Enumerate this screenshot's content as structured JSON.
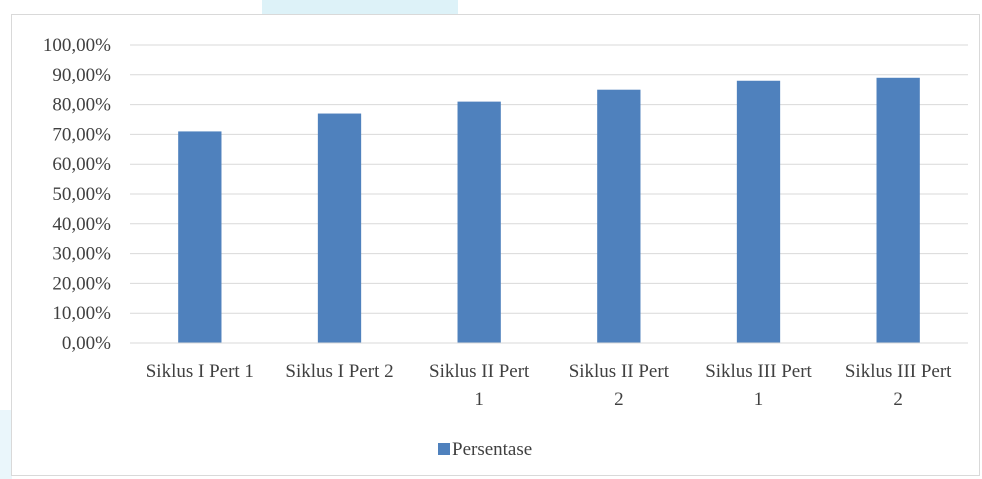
{
  "chart_data": {
    "type": "bar",
    "title": "",
    "xlabel": "",
    "ylabel": "",
    "categories": [
      [
        "Siklus I Pert 1"
      ],
      [
        "Siklus I Pert 2"
      ],
      [
        "Siklus II Pert",
        "1"
      ],
      [
        "Siklus II Pert",
        "2"
      ],
      [
        "Siklus III Pert",
        "1"
      ],
      [
        "Siklus III Pert",
        "2"
      ]
    ],
    "series": [
      {
        "name": "Persentase",
        "color": "#4f81bd",
        "values": [
          71.0,
          77.0,
          81.0,
          85.0,
          88.0,
          89.0
        ]
      }
    ],
    "ylim": [
      0,
      100
    ],
    "yticks": [
      0,
      10,
      20,
      30,
      40,
      50,
      60,
      70,
      80,
      90,
      100
    ],
    "ytick_labels": [
      "0,00%",
      "10,00%",
      "20,00%",
      "30,00%",
      "40,00%",
      "50,00%",
      "60,00%",
      "70,00%",
      "80,00%",
      "90,00%",
      "100,00%"
    ],
    "grid": true,
    "legend": "bottom",
    "gridline_color": "#d9d9d9"
  }
}
